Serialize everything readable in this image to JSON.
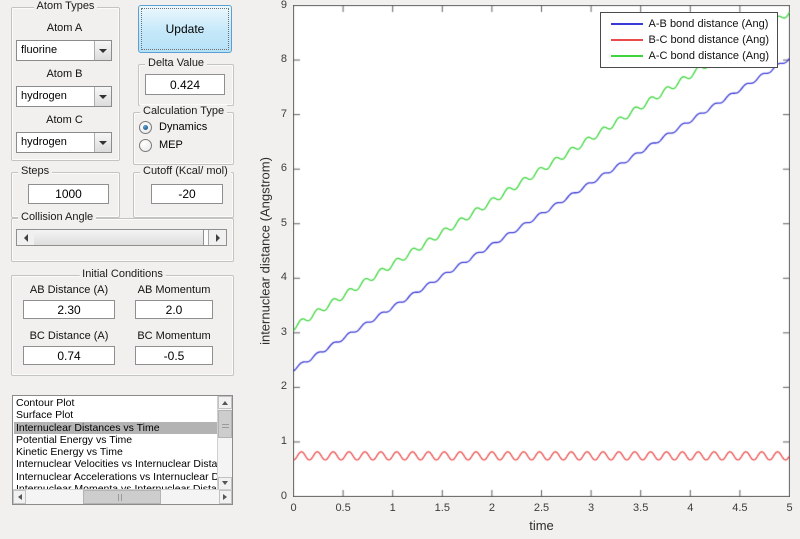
{
  "panel": {
    "atom_types": {
      "title": "Atom Types",
      "fields": [
        {
          "label": "Atom A",
          "value": "fluorine"
        },
        {
          "label": "Atom B",
          "value": "hydrogen"
        },
        {
          "label": "Atom C",
          "value": "hydrogen"
        }
      ]
    },
    "update_button_label": "Update",
    "delta_value": {
      "title": "Delta Value",
      "value": "0.424"
    },
    "calculation_type": {
      "title": "Calculation Type",
      "options": [
        {
          "label": "Dynamics",
          "selected": true
        },
        {
          "label": "MEP",
          "selected": false
        }
      ]
    },
    "steps": {
      "title": "Steps",
      "value": "1000"
    },
    "cutoff": {
      "title": "Cutoff (Kcal/ mol)",
      "value": "-20"
    },
    "collision_angle": {
      "title": "Collision Angle"
    },
    "initial_conditions": {
      "title": "Initial Conditions",
      "fields": [
        {
          "label": "AB Distance (A)",
          "value": "2.30"
        },
        {
          "label": "AB Momentum",
          "value": "2.0"
        },
        {
          "label": "BC Distance (A)",
          "value": "0.74"
        },
        {
          "label": "BC Momentum",
          "value": "-0.5"
        }
      ]
    },
    "plot_list": {
      "selected_index": 2,
      "items": [
        "Contour Plot",
        "Surface Plot",
        "Internuclear Distances vs Time",
        "Potential Energy vs Time",
        "Kinetic Energy vs Time",
        "Internuclear Velocities vs Internuclear Distance",
        "Internuclear Accelerations vs Internuclear Distance",
        "Internuclear Momenta vs Internuclear Distance"
      ]
    }
  },
  "chart_data": {
    "type": "line",
    "title": "",
    "xlabel": "time",
    "ylabel": "internuclear distance (Angstrom)",
    "xlim": [
      0,
      5
    ],
    "ylim": [
      0,
      9
    ],
    "x_ticks": [
      0,
      0.5,
      1,
      1.5,
      2,
      2.5,
      3,
      3.5,
      4,
      4.5,
      5
    ],
    "y_ticks": [
      0,
      1,
      2,
      3,
      4,
      5,
      6,
      7,
      8,
      9
    ],
    "grid": false,
    "legend_position": "top-right",
    "sample_step": 0.004,
    "series": [
      {
        "name": "A-B bond distance (Ang)",
        "color": "#3a3ad8",
        "model": {
          "type": "linear+sine",
          "y_start": 2.33,
          "y_end": 8.03,
          "amplitude": 0.03,
          "period": 0.16,
          "phase_deg": -90
        }
      },
      {
        "name": "B-C bond distance (Ang)",
        "color": "#ea4a4a",
        "model": {
          "type": "linear+sine",
          "y_start": 0.745,
          "y_end": 0.745,
          "amplitude": 0.075,
          "period": 0.16,
          "phase_deg": -90
        }
      },
      {
        "name": "A-C bond distance (Ang)",
        "color": "#3cd63c",
        "model": {
          "type": "linear+sine",
          "y_start": 3.1,
          "y_end": 8.88,
          "amplitude": 0.055,
          "period": 0.16,
          "phase_deg": -90
        }
      }
    ],
    "colors": {
      "selection": "#b3b3b3",
      "plot_background": "#ffffff",
      "figure_background": "#f1f0ee"
    }
  }
}
